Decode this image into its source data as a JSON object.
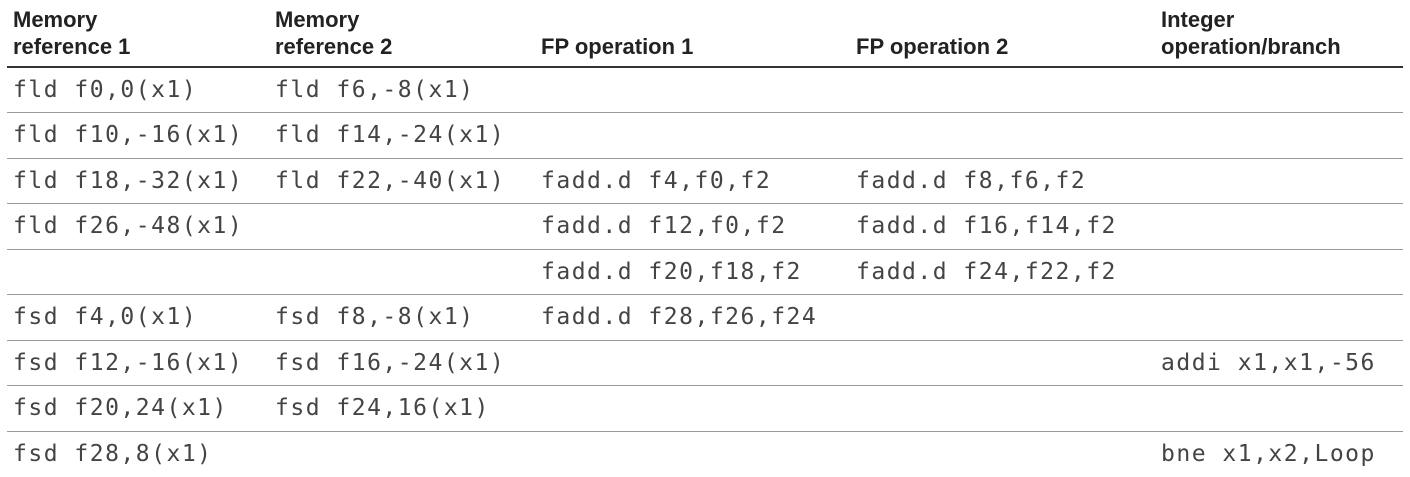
{
  "table": {
    "headers": [
      "Memory\nreference 1",
      "Memory\nreference 2",
      "FP operation 1",
      "FP operation 2",
      "Integer\noperation/branch"
    ],
    "rows": [
      [
        "fld f0,0(x1)",
        "fld f6,-8(x1)",
        "",
        "",
        ""
      ],
      [
        "fld f10,-16(x1)",
        "fld f14,-24(x1)",
        "",
        "",
        ""
      ],
      [
        "fld f18,-32(x1)",
        "fld f22,-40(x1)",
        "fadd.d f4,f0,f2",
        "fadd.d f8,f6,f2",
        ""
      ],
      [
        "fld f26,-48(x1)",
        "",
        "fadd.d f12,f0,f2",
        "fadd.d f16,f14,f2",
        ""
      ],
      [
        "",
        "",
        "fadd.d f20,f18,f2",
        "fadd.d f24,f22,f2",
        ""
      ],
      [
        "fsd f4,0(x1)",
        "fsd f8,-8(x1)",
        "fadd.d f28,f26,f24",
        "",
        ""
      ],
      [
        "fsd f12,-16(x1)",
        "fsd f16,-24(x1)",
        "",
        "",
        "addi x1,x1,-56"
      ],
      [
        "fsd f20,24(x1)",
        "fsd f24,16(x1)",
        "",
        "",
        ""
      ],
      [
        "fsd f28,8(x1)",
        "",
        "",
        "",
        "bne x1,x2,Loop"
      ]
    ]
  }
}
